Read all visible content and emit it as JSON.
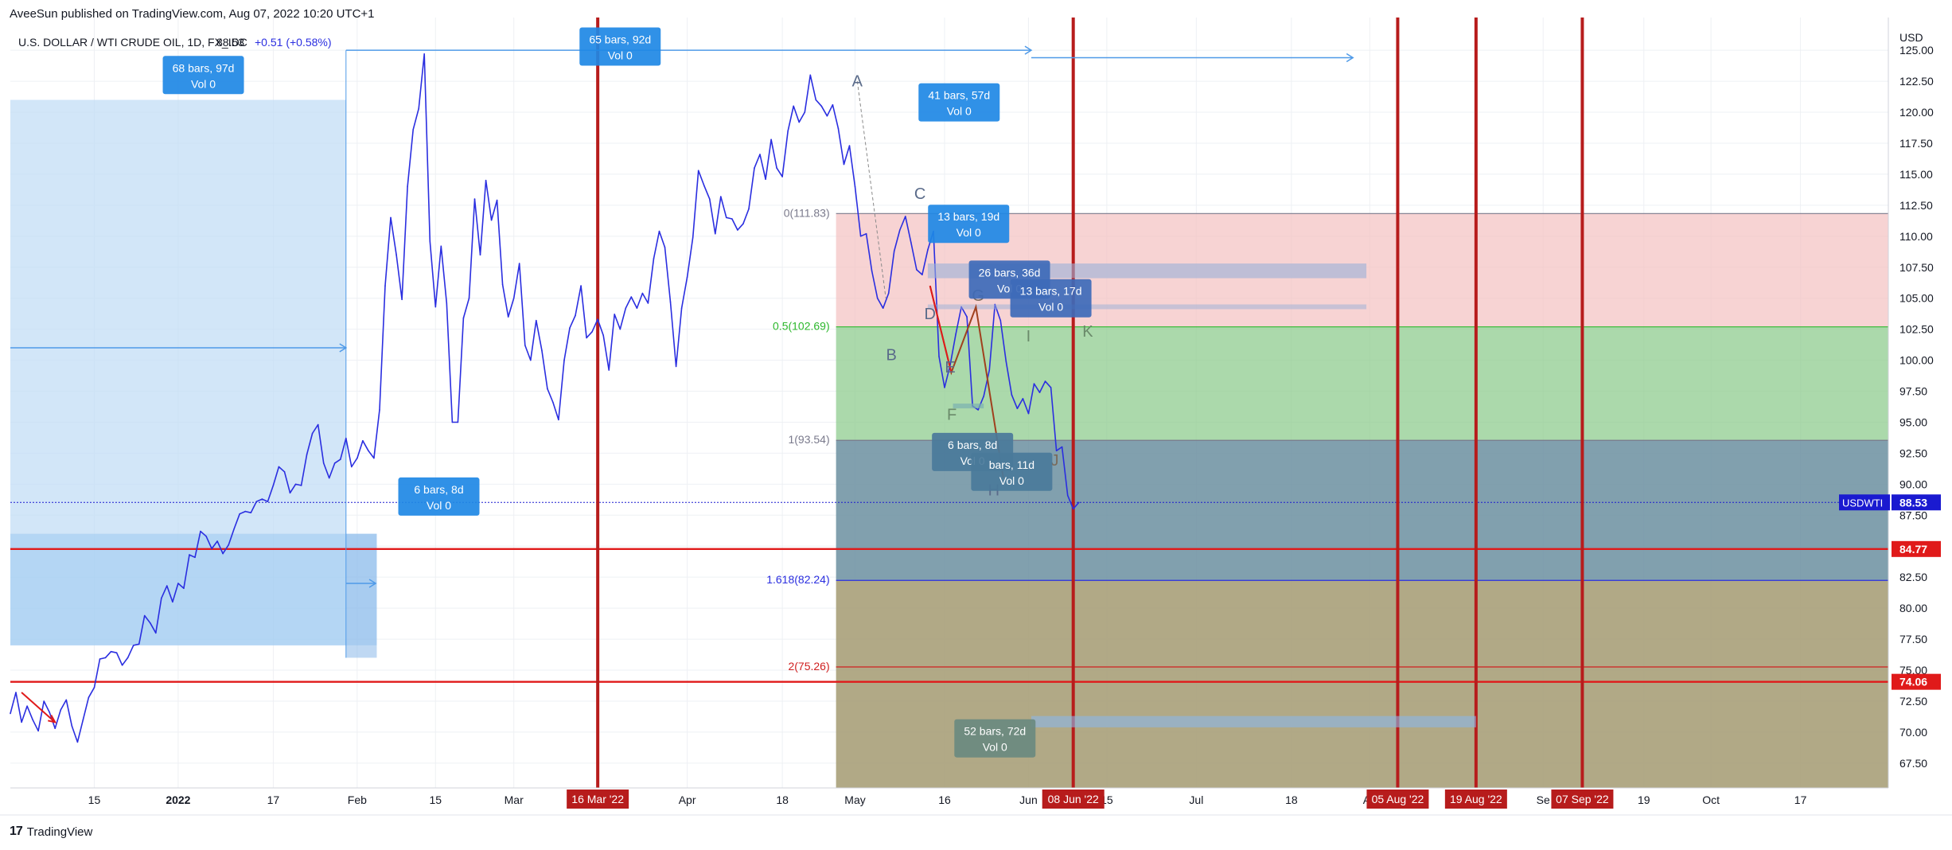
{
  "header": {
    "text": "AveeSun published on TradingView.com, Aug 07, 2022 10:20 UTC+1"
  },
  "footer": {
    "logo": "17",
    "brand": "TradingView"
  },
  "colors": {
    "line": "#2a2ee0",
    "accent": "#2196f3",
    "red": "#d01010",
    "darkred": "#b71c1c"
  },
  "chart_data": {
    "type": "line",
    "title": "U.S. DOLLAR / WTI CRUDE OIL, 1D, FX_IDC",
    "last_value": "88.53",
    "change": "+0.51 (+0.58%)",
    "currency": "USD",
    "ylim": [
      65.5,
      127.0
    ],
    "y_ticks": [
      "125.00",
      "122.50",
      "120.00",
      "117.50",
      "115.00",
      "112.50",
      "110.00",
      "107.50",
      "105.00",
      "102.50",
      "100.00",
      "97.50",
      "95.00",
      "92.50",
      "90.00",
      "87.50",
      "85.00",
      "82.50",
      "80.00",
      "77.50",
      "75.00",
      "72.50",
      "70.00",
      "67.50"
    ],
    "x_ticks": [
      {
        "label": "15",
        "t": 15
      },
      {
        "label": "2022",
        "t": 30
      },
      {
        "label": "17",
        "t": 47
      },
      {
        "label": "Feb",
        "t": 62
      },
      {
        "label": "15",
        "t": 76
      },
      {
        "label": "Mar",
        "t": 90
      },
      {
        "label": "Apr",
        "t": 121
      },
      {
        "label": "18",
        "t": 138
      },
      {
        "label": "May",
        "t": 151
      },
      {
        "label": "16",
        "t": 167
      },
      {
        "label": "Jun",
        "t": 182
      },
      {
        "label": "15",
        "t": 196
      },
      {
        "label": "Jul",
        "t": 212
      },
      {
        "label": "18",
        "t": 229
      },
      {
        "label": "Au",
        "t": 243
      },
      {
        "label": "Se",
        "t": 274
      },
      {
        "label": "19",
        "t": 292
      },
      {
        "label": "Oct",
        "t": 304
      },
      {
        "label": "17",
        "t": 320
      }
    ],
    "date_markers": [
      {
        "label": "16 Mar '22",
        "t": 105
      },
      {
        "label": "08 Jun '22",
        "t": 190
      },
      {
        "label": "05 Aug '22",
        "t": 248
      },
      {
        "label": "19 Aug '22",
        "t": 262
      },
      {
        "label": "07 Sep '22",
        "t": 281
      }
    ],
    "price_labels": [
      {
        "label": "USDWTI",
        "value": "88.53",
        "y": 88.53,
        "color": "#1a1ad0"
      },
      {
        "label": "",
        "value": "84.77",
        "y": 84.77,
        "color": "#e01a1a"
      },
      {
        "label": "",
        "value": "74.06",
        "y": 74.06,
        "color": "#e01a1a"
      }
    ],
    "series": [
      {
        "values": [
          [
            0,
            71.5
          ],
          [
            1,
            73.2
          ],
          [
            2,
            70.8
          ],
          [
            3,
            72.1
          ],
          [
            4,
            71.0
          ],
          [
            5,
            70.1
          ],
          [
            6,
            72.5
          ],
          [
            7,
            71.6
          ],
          [
            8,
            70.3
          ],
          [
            9,
            71.8
          ],
          [
            10,
            72.6
          ],
          [
            11,
            70.5
          ],
          [
            12,
            69.2
          ],
          [
            13,
            71.0
          ],
          [
            14,
            72.8
          ],
          [
            15,
            73.6
          ],
          [
            16,
            75.9
          ],
          [
            17,
            76.0
          ],
          [
            18,
            76.5
          ],
          [
            19,
            76.4
          ],
          [
            20,
            75.4
          ],
          [
            21,
            76.0
          ],
          [
            22,
            77.0
          ],
          [
            23,
            77.1
          ],
          [
            24,
            79.4
          ],
          [
            25,
            78.8
          ],
          [
            26,
            78.0
          ],
          [
            27,
            80.8
          ],
          [
            28,
            81.8
          ],
          [
            29,
            80.5
          ],
          [
            30,
            82.0
          ],
          [
            31,
            81.6
          ],
          [
            32,
            84.3
          ],
          [
            33,
            84.1
          ],
          [
            34,
            86.2
          ],
          [
            35,
            85.8
          ],
          [
            36,
            84.8
          ],
          [
            37,
            85.4
          ],
          [
            38,
            84.4
          ],
          [
            39,
            85.1
          ],
          [
            40,
            86.4
          ],
          [
            41,
            87.6
          ],
          [
            42,
            87.8
          ],
          [
            43,
            87.7
          ],
          [
            44,
            88.6
          ],
          [
            45,
            88.8
          ],
          [
            46,
            88.6
          ],
          [
            47,
            89.9
          ],
          [
            48,
            91.4
          ],
          [
            49,
            91.0
          ],
          [
            50,
            89.3
          ],
          [
            51,
            90.0
          ],
          [
            52,
            89.9
          ],
          [
            53,
            92.4
          ],
          [
            54,
            94.1
          ],
          [
            55,
            94.8
          ],
          [
            56,
            91.7
          ],
          [
            57,
            90.5
          ],
          [
            58,
            91.7
          ],
          [
            59,
            92.0
          ],
          [
            60,
            93.7
          ],
          [
            61,
            91.4
          ],
          [
            62,
            92.1
          ],
          [
            63,
            93.5
          ],
          [
            64,
            92.7
          ],
          [
            65,
            92.1
          ],
          [
            66,
            96.0
          ],
          [
            67,
            106.0
          ],
          [
            68,
            111.5
          ],
          [
            69,
            108.5
          ],
          [
            70,
            104.9
          ],
          [
            71,
            114.0
          ],
          [
            72,
            118.6
          ],
          [
            73,
            120.3
          ],
          [
            74,
            124.7
          ],
          [
            75,
            109.6
          ],
          [
            76,
            104.3
          ],
          [
            77,
            109.2
          ],
          [
            78,
            104.6
          ],
          [
            79,
            95.0
          ],
          [
            80,
            95.0
          ],
          [
            81,
            103.4
          ],
          [
            82,
            105.0
          ],
          [
            83,
            113.0
          ],
          [
            84,
            108.5
          ],
          [
            85,
            114.5
          ],
          [
            86,
            111.3
          ],
          [
            87,
            112.9
          ],
          [
            88,
            106.1
          ],
          [
            89,
            103.5
          ],
          [
            90,
            105.0
          ],
          [
            91,
            107.8
          ],
          [
            92,
            101.2
          ],
          [
            93,
            100.0
          ],
          [
            94,
            103.2
          ],
          [
            95,
            100.8
          ],
          [
            96,
            97.7
          ],
          [
            97,
            96.6
          ],
          [
            98,
            95.2
          ],
          [
            99,
            100.0
          ],
          [
            100,
            102.6
          ],
          [
            101,
            103.6
          ],
          [
            102,
            106.0
          ],
          [
            103,
            101.8
          ],
          [
            104,
            102.3
          ],
          [
            105,
            103.3
          ],
          [
            106,
            102.0
          ],
          [
            107,
            99.2
          ],
          [
            108,
            103.7
          ],
          [
            109,
            102.5
          ],
          [
            110,
            104.2
          ],
          [
            111,
            105.1
          ],
          [
            112,
            104.2
          ],
          [
            113,
            105.4
          ],
          [
            114,
            104.6
          ],
          [
            115,
            108.2
          ],
          [
            116,
            110.4
          ],
          [
            117,
            109.1
          ],
          [
            118,
            104.7
          ],
          [
            119,
            99.5
          ],
          [
            120,
            104.2
          ],
          [
            121,
            106.7
          ],
          [
            122,
            109.9
          ],
          [
            123,
            115.3
          ],
          [
            124,
            114.1
          ],
          [
            125,
            113.0
          ],
          [
            126,
            110.2
          ],
          [
            127,
            113.2
          ],
          [
            128,
            111.5
          ],
          [
            129,
            111.4
          ],
          [
            130,
            110.5
          ],
          [
            131,
            111.0
          ],
          [
            132,
            112.2
          ],
          [
            133,
            115.5
          ],
          [
            134,
            116.6
          ],
          [
            135,
            114.6
          ],
          [
            136,
            117.8
          ],
          [
            137,
            115.5
          ],
          [
            138,
            114.8
          ],
          [
            139,
            118.5
          ],
          [
            140,
            120.5
          ],
          [
            141,
            119.2
          ],
          [
            142,
            120.0
          ],
          [
            143,
            123.0
          ],
          [
            144,
            121.0
          ],
          [
            145,
            120.5
          ],
          [
            146,
            119.7
          ],
          [
            147,
            120.6
          ],
          [
            148,
            118.7
          ],
          [
            149,
            115.8
          ],
          [
            150,
            117.3
          ],
          [
            151,
            114.0
          ],
          [
            152,
            110.0
          ],
          [
            153,
            110.2
          ],
          [
            154,
            107.2
          ],
          [
            155,
            105.0
          ],
          [
            156,
            104.2
          ],
          [
            157,
            105.4
          ],
          [
            158,
            108.8
          ],
          [
            159,
            110.5
          ],
          [
            160,
            111.6
          ],
          [
            161,
            109.5
          ],
          [
            162,
            107.3
          ],
          [
            163,
            106.9
          ],
          [
            164,
            108.9
          ],
          [
            165,
            110.4
          ],
          [
            166,
            100.3
          ],
          [
            167,
            97.8
          ],
          [
            168,
            99.6
          ],
          [
            169,
            102.1
          ],
          [
            170,
            104.3
          ],
          [
            171,
            103.5
          ],
          [
            172,
            96.3
          ],
          [
            173,
            96.0
          ],
          [
            174,
            97.1
          ],
          [
            175,
            99.2
          ],
          [
            176,
            104.5
          ],
          [
            177,
            103.2
          ],
          [
            178,
            99.9
          ],
          [
            179,
            97.2
          ],
          [
            180,
            96.1
          ],
          [
            181,
            96.9
          ],
          [
            182,
            95.7
          ],
          [
            183,
            98.1
          ],
          [
            184,
            97.4
          ],
          [
            185,
            98.3
          ],
          [
            186,
            97.8
          ],
          [
            187,
            92.7
          ],
          [
            188,
            93.0
          ],
          [
            189,
            89.1
          ],
          [
            190,
            88.0
          ],
          [
            191,
            88.53
          ]
        ]
      }
    ],
    "fib_levels": [
      {
        "label": "0(111.83)",
        "value": 111.83,
        "color": "#7a7a8c"
      },
      {
        "label": "0.5(102.69)",
        "value": 102.69,
        "color": "#2db82d"
      },
      {
        "label": "1(93.54)",
        "value": 93.54,
        "color": "#7a7a8c"
      },
      {
        "label": "1.618(82.24)",
        "value": 82.24,
        "color": "#2a2ee0"
      },
      {
        "label": "2(75.26)",
        "value": 75.26,
        "color": "#d02020"
      }
    ],
    "wave_labels": [
      {
        "text": "A",
        "t": 151.4,
        "y": 122.1,
        "color": "#5a6b8a"
      },
      {
        "text": "B",
        "t": 157.5,
        "y": 100.0,
        "color": "#5a6b8a"
      },
      {
        "text": "C",
        "t": 162.6,
        "y": 113.0,
        "color": "#5a6b8a"
      },
      {
        "text": "D",
        "t": 164.4,
        "y": 103.3,
        "color": "#5a6b8a"
      },
      {
        "text": "E",
        "t": 168.0,
        "y": 99.0,
        "color": "#5a6b8a"
      },
      {
        "text": "F",
        "t": 168.3,
        "y": 95.2,
        "color": "#6a8a6a"
      },
      {
        "text": "G",
        "t": 173.0,
        "y": 104.8,
        "color": "#7a6a5a"
      },
      {
        "text": "H",
        "t": 175.8,
        "y": 89.1,
        "color": "#5a6b8a"
      },
      {
        "text": "I",
        "t": 182.0,
        "y": 101.5,
        "color": "#6a8a6a"
      },
      {
        "text": "J",
        "t": 186.7,
        "y": 91.5,
        "color": "#7a6a5a"
      },
      {
        "text": "K",
        "t": 192.6,
        "y": 101.9,
        "color": "#6a8a6a"
      }
    ],
    "range_boxes": [
      {
        "l1": "68 bars, 97d",
        "l2": "Vol 0",
        "t": 34.5,
        "y": 123.0,
        "color": "#1e88e5"
      },
      {
        "l1": "65 bars, 92d",
        "l2": "Vol 0",
        "t": 109,
        "y": 125.3,
        "color": "#1e88e5"
      },
      {
        "l1": "41 bars, 57d",
        "l2": "Vol 0",
        "t": 169.6,
        "y": 120.8,
        "color": "#1e88e5"
      },
      {
        "l1": "13 bars, 19d",
        "l2": "Vol 0",
        "t": 171.3,
        "y": 111.0,
        "color": "#1e88e5"
      },
      {
        "l1": "26 bars, 36d",
        "l2": "Vol 0",
        "t": 178.6,
        "y": 106.5,
        "color": "#3d6ab8"
      },
      {
        "l1": "13 bars, 17d",
        "l2": "Vol 0",
        "t": 186.0,
        "y": 105.0,
        "color": "#3d6ab8"
      },
      {
        "l1": "6 bars, 8d",
        "l2": "Vol 0",
        "t": 76.6,
        "y": 89.0,
        "color": "#1e88e5"
      },
      {
        "l1": "6 bars, 8d",
        "l2": "Vol 0",
        "t": 172.0,
        "y": 92.6,
        "color": "#4a7a9a"
      },
      {
        "l1": "bars, 11d",
        "l2": "Vol 0",
        "t": 179.0,
        "y": 91.0,
        "color": "#4a7a9a"
      },
      {
        "l1": "52 bars, 72d",
        "l2": "Vol 0",
        "t": 176.0,
        "y": 69.5,
        "color": "#6a8a80"
      }
    ]
  }
}
